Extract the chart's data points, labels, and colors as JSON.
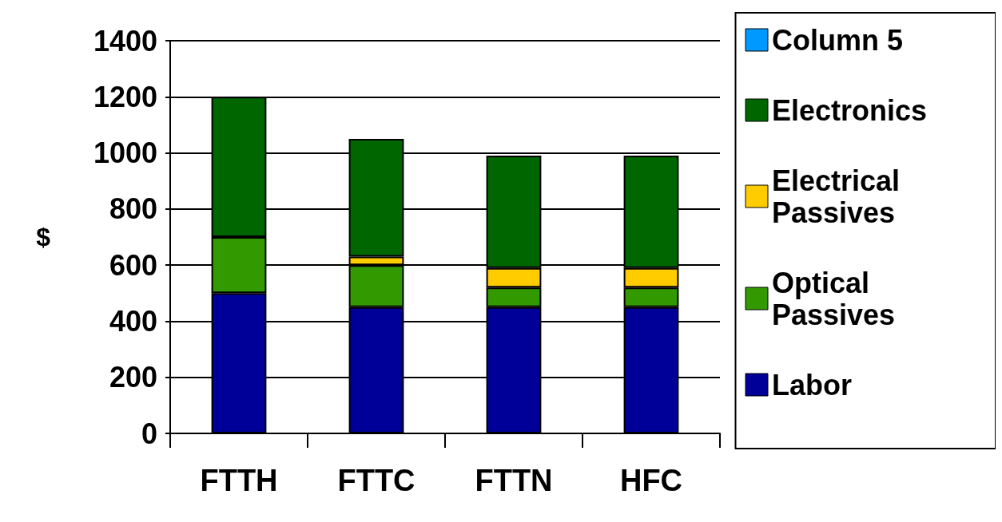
{
  "chart_data": {
    "type": "bar",
    "stacked": true,
    "ylabel": "$",
    "categories": [
      "FTTH",
      "FTTC",
      "FTTN",
      "HFC"
    ],
    "series": [
      {
        "name": "Labor",
        "color": "#000099",
        "values": [
          500,
          450,
          450,
          450
        ]
      },
      {
        "name": "Optical Passives",
        "color": "#339900",
        "values": [
          200,
          150,
          70,
          70
        ]
      },
      {
        "name": "Electrical Passives",
        "color": "#ffcc00",
        "values": [
          0,
          30,
          70,
          70
        ]
      },
      {
        "name": "Electronics",
        "color": "#006600",
        "values": [
          500,
          420,
          400,
          400
        ]
      },
      {
        "name": "Column 5",
        "color": "#0099ff",
        "values": [
          0,
          0,
          0,
          0
        ]
      }
    ],
    "ylim": [
      0,
      1400
    ],
    "yticks": [
      0,
      200,
      400,
      600,
      800,
      1000,
      1200,
      1400
    ],
    "grid": "y",
    "legend": "right"
  }
}
